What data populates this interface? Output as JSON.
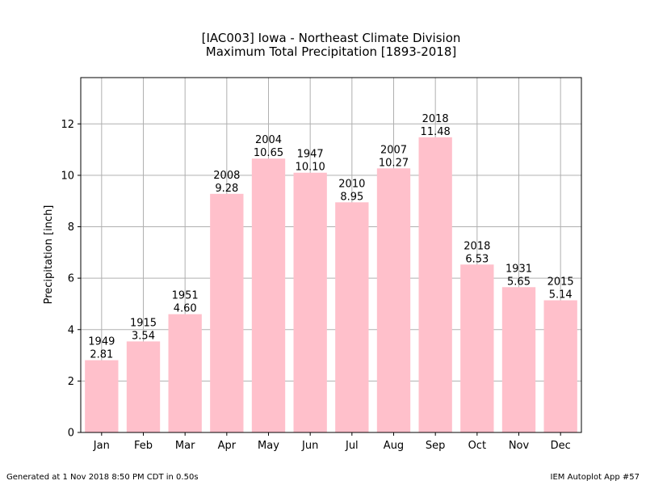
{
  "chart_data": {
    "type": "bar",
    "title": "[IAC003] Iowa - Northeast Climate Division",
    "subtitle": "Maximum Total Precipitation [1893-2018]",
    "xlabel": "",
    "ylabel": "Precipitation [inch]",
    "ylim": [
      0,
      13.8
    ],
    "yticks": [
      0,
      2,
      4,
      6,
      8,
      10,
      12
    ],
    "grid": true,
    "bar_color": "#FFC0CB",
    "categories": [
      "Jan",
      "Feb",
      "Mar",
      "Apr",
      "May",
      "Jun",
      "Jul",
      "Aug",
      "Sep",
      "Oct",
      "Nov",
      "Dec"
    ],
    "values": [
      2.81,
      3.54,
      4.6,
      9.28,
      10.65,
      10.1,
      8.95,
      10.27,
      11.48,
      6.53,
      5.65,
      5.14
    ],
    "value_labels": [
      "2.81",
      "3.54",
      "4.60",
      "9.28",
      "10.65",
      "10.10",
      "8.95",
      "10.27",
      "11.48",
      "6.53",
      "5.65",
      "5.14"
    ],
    "years": [
      "1949",
      "1915",
      "1951",
      "2008",
      "2004",
      "1947",
      "2010",
      "2007",
      "2018",
      "2018",
      "1931",
      "2015"
    ]
  },
  "footer": {
    "left": "Generated at 1 Nov 2018 8:50 PM CDT in 0.50s",
    "right": "IEM Autoplot App #57"
  }
}
